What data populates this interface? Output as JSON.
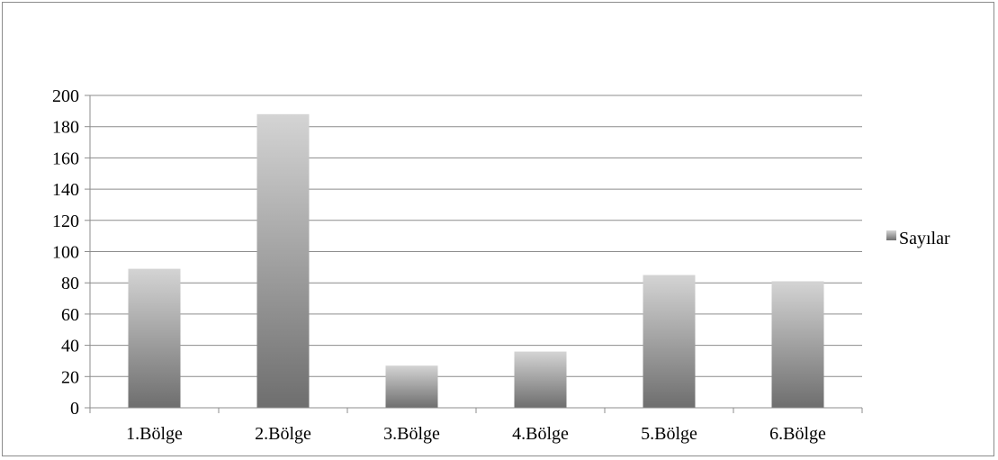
{
  "chart_data": {
    "type": "bar",
    "title": "",
    "xlabel": "",
    "ylabel": "",
    "categories": [
      "1.Bölge",
      "2.Bölge",
      "3.Bölge",
      "4.Bölge",
      "5.Bölge",
      "6.Bölge"
    ],
    "series": [
      {
        "name": "Sayılar",
        "values": [
          89,
          188,
          27,
          36,
          85,
          81
        ]
      }
    ],
    "ylim": [
      0,
      200
    ],
    "yticks": [
      0,
      20,
      40,
      60,
      80,
      100,
      120,
      140,
      160,
      180,
      200
    ],
    "grid": true,
    "legend_position": "right",
    "colors": {
      "bar_light": "#d4d4d4",
      "bar_dark": "#6e6e6e",
      "grid": "#8c8c8c",
      "axis": "#8c8c8c"
    }
  }
}
